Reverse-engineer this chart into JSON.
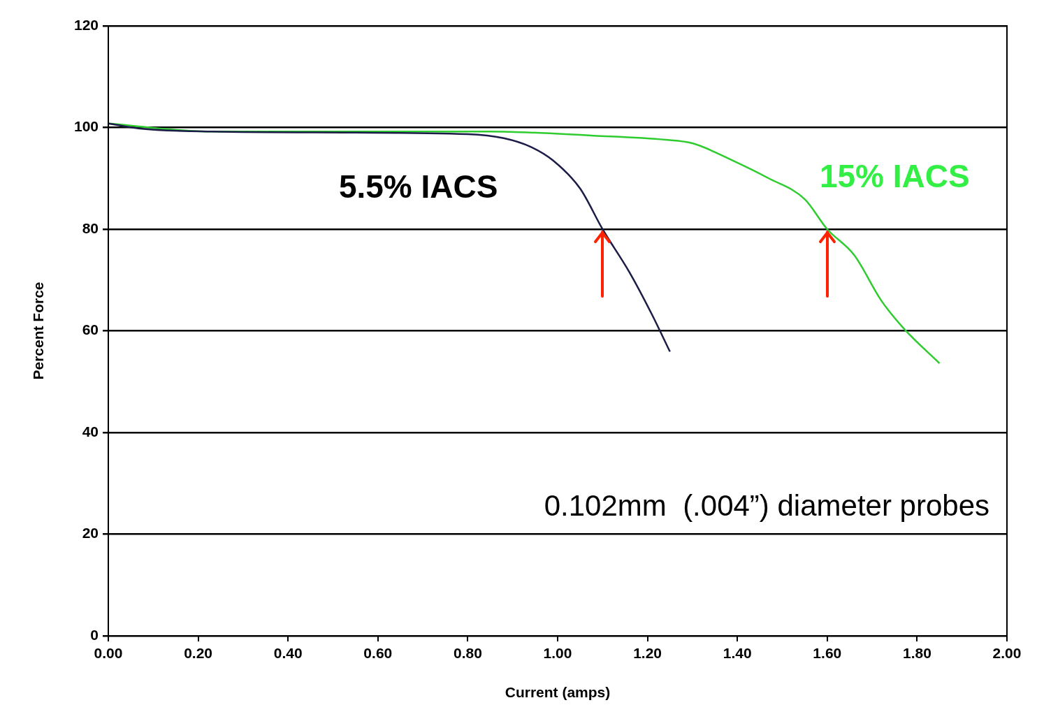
{
  "chart_data": {
    "type": "line",
    "xlabel": "Current (amps)",
    "ylabel": "Percent Force",
    "xlim": [
      0,
      2
    ],
    "xticks": [
      {
        "value": 0,
        "label": "0.00"
      },
      {
        "value": 0.2,
        "label": "0.20"
      },
      {
        "value": 0.4,
        "label": "0.40"
      },
      {
        "value": 0.6,
        "label": "0.60"
      },
      {
        "value": 0.8,
        "label": "0.80"
      },
      {
        "value": 1,
        "label": "1.00"
      },
      {
        "value": 1.2,
        "label": "1.20"
      },
      {
        "value": 1.4,
        "label": "1.40"
      },
      {
        "value": 1.6,
        "label": "1.60"
      },
      {
        "value": 1.8,
        "label": "1.80"
      },
      {
        "value": 2,
        "label": "2.00"
      }
    ],
    "ylim": [
      0,
      120
    ],
    "yticks": [
      0,
      20,
      40,
      60,
      80,
      100,
      120
    ],
    "grid": "y",
    "legend": false,
    "marker": "none",
    "line_style": "solid",
    "series": [
      {
        "name": "5.5% IACS",
        "color": "#1c1c48",
        "x": [
          0,
          0.07,
          0.23,
          0.54,
          0.8,
          0.88,
          0.94,
          0.99,
          1.05,
          1.1,
          1.16,
          1.21,
          1.25
        ],
        "values": [
          100.8,
          99.8,
          99.2,
          99,
          98.7,
          97.9,
          96.2,
          93.5,
          88,
          80,
          71.5,
          63.2,
          55.9
        ]
      },
      {
        "name": "15% IACS",
        "color": "#2fcc2f",
        "x": [
          0,
          0.23,
          0.85,
          1.08,
          1.24,
          1.3,
          1.39,
          1.47,
          1.55,
          1.6,
          1.66,
          1.72,
          1.77,
          1.85
        ],
        "values": [
          100.8,
          99.2,
          99.2,
          98.4,
          97.6,
          96.9,
          93.5,
          90,
          85.9,
          80,
          74.9,
          66,
          60.5,
          53.6
        ]
      }
    ],
    "annotations": [
      "0.102mm  (.004”) diameter probes"
    ]
  }
}
